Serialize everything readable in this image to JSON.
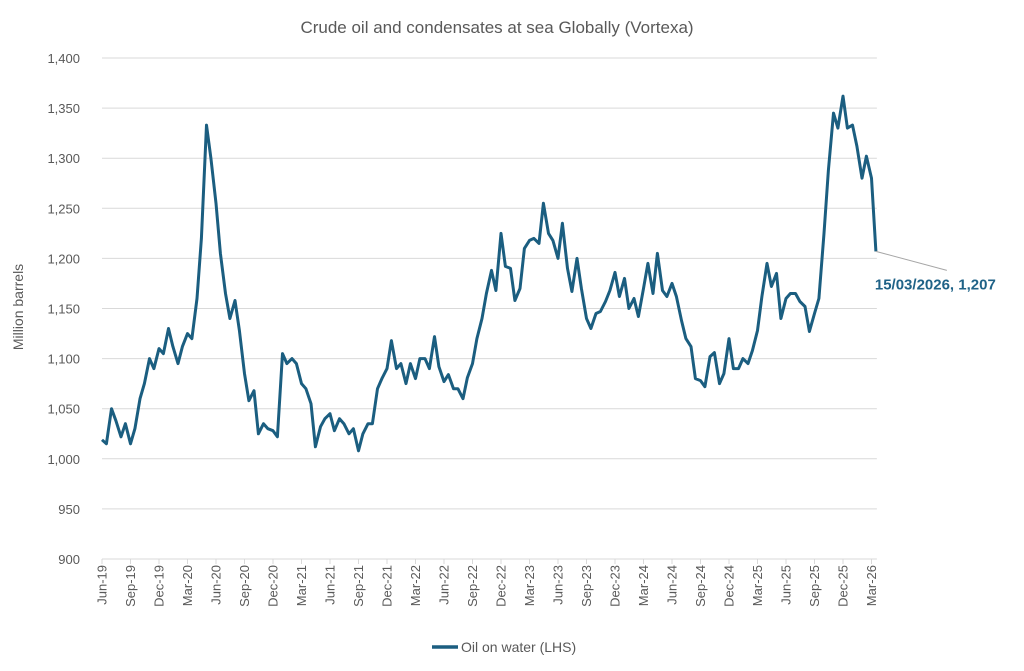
{
  "chart_data": {
    "type": "line",
    "title": "Crude oil and condensates at sea Globally (Vortexa)",
    "ylabel": "Million barrels",
    "xlabel": "",
    "ylim": [
      900,
      1400
    ],
    "yticks": [
      900,
      950,
      1000,
      1050,
      1100,
      1150,
      1200,
      1250,
      1300,
      1350,
      1400
    ],
    "ytick_labels": [
      "900",
      "950",
      "1,000",
      "1,050",
      "1,100",
      "1,150",
      "1,200",
      "1,250",
      "1,300",
      "1,350",
      "1,400"
    ],
    "xtick_labels": [
      "Jun-19",
      "Sep-19",
      "Dec-19",
      "Mar-20",
      "Jun-20",
      "Sep-20",
      "Dec-20",
      "Mar-21",
      "Jun-21",
      "Sep-21",
      "Dec-21",
      "Mar-22",
      "Jun-22",
      "Sep-22",
      "Dec-22",
      "Mar-23",
      "Jun-23",
      "Sep-23",
      "Dec-23",
      "Mar-24",
      "Jun-24",
      "Sep-24",
      "Dec-24",
      "Mar-25",
      "Jun-25",
      "Sep-25",
      "Dec-25",
      "Mar-26"
    ],
    "xlim": [
      "2019-06-01",
      "2026-03-15"
    ],
    "grid": "horizontal",
    "legend_placement": "bottom",
    "colors": {
      "line": "#1b5e80",
      "grid": "#d9d9d9",
      "annotation": "#1f6287"
    },
    "annotation": {
      "text": "15/03/2026, 1,207",
      "x": "2026-03-15",
      "y": 1207
    },
    "series": [
      {
        "name": "Oil on water (LHS)",
        "points": [
          [
            "2019-06-01",
            1019
          ],
          [
            "2019-06-15",
            1015
          ],
          [
            "2019-07-01",
            1050
          ],
          [
            "2019-07-15",
            1038
          ],
          [
            "2019-08-01",
            1022
          ],
          [
            "2019-08-15",
            1035
          ],
          [
            "2019-09-01",
            1015
          ],
          [
            "2019-09-15",
            1030
          ],
          [
            "2019-10-01",
            1060
          ],
          [
            "2019-10-15",
            1075
          ],
          [
            "2019-11-01",
            1100
          ],
          [
            "2019-11-15",
            1090
          ],
          [
            "2019-12-01",
            1110
          ],
          [
            "2019-12-15",
            1105
          ],
          [
            "2020-01-01",
            1130
          ],
          [
            "2020-01-15",
            1112
          ],
          [
            "2020-02-01",
            1095
          ],
          [
            "2020-02-15",
            1112
          ],
          [
            "2020-03-01",
            1125
          ],
          [
            "2020-03-15",
            1120
          ],
          [
            "2020-04-01",
            1160
          ],
          [
            "2020-04-15",
            1220
          ],
          [
            "2020-05-01",
            1333
          ],
          [
            "2020-05-15",
            1300
          ],
          [
            "2020-06-01",
            1255
          ],
          [
            "2020-06-15",
            1205
          ],
          [
            "2020-07-01",
            1165
          ],
          [
            "2020-07-15",
            1140
          ],
          [
            "2020-08-01",
            1158
          ],
          [
            "2020-08-15",
            1128
          ],
          [
            "2020-09-01",
            1085
          ],
          [
            "2020-09-15",
            1058
          ],
          [
            "2020-10-01",
            1068
          ],
          [
            "2020-10-15",
            1025
          ],
          [
            "2020-11-01",
            1035
          ],
          [
            "2020-11-15",
            1030
          ],
          [
            "2020-12-01",
            1028
          ],
          [
            "2020-12-15",
            1022
          ],
          [
            "2021-01-01",
            1105
          ],
          [
            "2021-01-15",
            1095
          ],
          [
            "2021-02-01",
            1100
          ],
          [
            "2021-02-15",
            1095
          ],
          [
            "2021-03-01",
            1075
          ],
          [
            "2021-03-15",
            1070
          ],
          [
            "2021-04-01",
            1055
          ],
          [
            "2021-04-15",
            1012
          ],
          [
            "2021-05-01",
            1032
          ],
          [
            "2021-05-15",
            1040
          ],
          [
            "2021-06-01",
            1045
          ],
          [
            "2021-06-15",
            1028
          ],
          [
            "2021-07-01",
            1040
          ],
          [
            "2021-07-15",
            1035
          ],
          [
            "2021-08-01",
            1025
          ],
          [
            "2021-08-15",
            1030
          ],
          [
            "2021-09-01",
            1008
          ],
          [
            "2021-09-15",
            1025
          ],
          [
            "2021-10-01",
            1035
          ],
          [
            "2021-10-15",
            1035
          ],
          [
            "2021-11-01",
            1070
          ],
          [
            "2021-11-15",
            1080
          ],
          [
            "2021-12-01",
            1090
          ],
          [
            "2021-12-15",
            1118
          ],
          [
            "2022-01-01",
            1090
          ],
          [
            "2022-01-15",
            1095
          ],
          [
            "2022-02-01",
            1075
          ],
          [
            "2022-02-15",
            1095
          ],
          [
            "2022-03-01",
            1080
          ],
          [
            "2022-03-15",
            1100
          ],
          [
            "2022-04-01",
            1100
          ],
          [
            "2022-04-15",
            1090
          ],
          [
            "2022-05-01",
            1122
          ],
          [
            "2022-05-15",
            1092
          ],
          [
            "2022-06-01",
            1077
          ],
          [
            "2022-06-15",
            1084
          ],
          [
            "2022-07-01",
            1070
          ],
          [
            "2022-07-15",
            1070
          ],
          [
            "2022-08-01",
            1060
          ],
          [
            "2022-08-15",
            1081
          ],
          [
            "2022-09-01",
            1095
          ],
          [
            "2022-09-15",
            1120
          ],
          [
            "2022-10-01",
            1140
          ],
          [
            "2022-10-15",
            1165
          ],
          [
            "2022-11-01",
            1188
          ],
          [
            "2022-11-15",
            1168
          ],
          [
            "2022-12-01",
            1225
          ],
          [
            "2022-12-15",
            1192
          ],
          [
            "2023-01-01",
            1190
          ],
          [
            "2023-01-15",
            1158
          ],
          [
            "2023-02-01",
            1170
          ],
          [
            "2023-02-15",
            1210
          ],
          [
            "2023-03-01",
            1218
          ],
          [
            "2023-03-15",
            1220
          ],
          [
            "2023-04-01",
            1215
          ],
          [
            "2023-04-15",
            1255
          ],
          [
            "2023-05-01",
            1225
          ],
          [
            "2023-05-15",
            1218
          ],
          [
            "2023-06-01",
            1200
          ],
          [
            "2023-06-15",
            1235
          ],
          [
            "2023-07-01",
            1190
          ],
          [
            "2023-07-15",
            1167
          ],
          [
            "2023-08-01",
            1200
          ],
          [
            "2023-08-15",
            1170
          ],
          [
            "2023-09-01",
            1140
          ],
          [
            "2023-09-15",
            1130
          ],
          [
            "2023-10-01",
            1145
          ],
          [
            "2023-10-15",
            1147
          ],
          [
            "2023-11-01",
            1157
          ],
          [
            "2023-11-15",
            1168
          ],
          [
            "2023-12-01",
            1186
          ],
          [
            "2023-12-15",
            1162
          ],
          [
            "2024-01-01",
            1180
          ],
          [
            "2024-01-15",
            1150
          ],
          [
            "2024-02-01",
            1160
          ],
          [
            "2024-02-15",
            1142
          ],
          [
            "2024-03-01",
            1170
          ],
          [
            "2024-03-15",
            1195
          ],
          [
            "2024-04-01",
            1165
          ],
          [
            "2024-04-15",
            1205
          ],
          [
            "2024-05-01",
            1168
          ],
          [
            "2024-05-15",
            1162
          ],
          [
            "2024-06-01",
            1175
          ],
          [
            "2024-06-15",
            1162
          ],
          [
            "2024-07-01",
            1138
          ],
          [
            "2024-07-15",
            1120
          ],
          [
            "2024-08-01",
            1112
          ],
          [
            "2024-08-15",
            1080
          ],
          [
            "2024-09-01",
            1078
          ],
          [
            "2024-09-15",
            1072
          ],
          [
            "2024-10-01",
            1102
          ],
          [
            "2024-10-15",
            1106
          ],
          [
            "2024-11-01",
            1075
          ],
          [
            "2024-11-15",
            1085
          ],
          [
            "2024-12-01",
            1120
          ],
          [
            "2024-12-15",
            1090
          ],
          [
            "2025-01-01",
            1090
          ],
          [
            "2025-01-15",
            1100
          ],
          [
            "2025-02-01",
            1095
          ],
          [
            "2025-02-15",
            1108
          ],
          [
            "2025-03-01",
            1128
          ],
          [
            "2025-03-15",
            1162
          ],
          [
            "2025-04-01",
            1195
          ],
          [
            "2025-04-15",
            1172
          ],
          [
            "2025-05-01",
            1185
          ],
          [
            "2025-05-15",
            1140
          ],
          [
            "2025-06-01",
            1160
          ],
          [
            "2025-06-15",
            1165
          ],
          [
            "2025-07-01",
            1165
          ],
          [
            "2025-07-15",
            1157
          ],
          [
            "2025-08-01",
            1152
          ],
          [
            "2025-08-15",
            1127
          ],
          [
            "2025-09-01",
            1145
          ],
          [
            "2025-09-15",
            1160
          ],
          [
            "2025-10-01",
            1225
          ],
          [
            "2025-10-15",
            1288
          ],
          [
            "2025-11-01",
            1345
          ],
          [
            "2025-11-15",
            1330
          ],
          [
            "2025-12-01",
            1362
          ],
          [
            "2025-12-15",
            1330
          ],
          [
            "2026-01-01",
            1333
          ],
          [
            "2026-01-15",
            1312
          ],
          [
            "2026-02-01",
            1280
          ],
          [
            "2026-02-15",
            1302
          ],
          [
            "2026-03-01",
            1280
          ],
          [
            "2026-03-15",
            1207
          ]
        ]
      }
    ]
  }
}
